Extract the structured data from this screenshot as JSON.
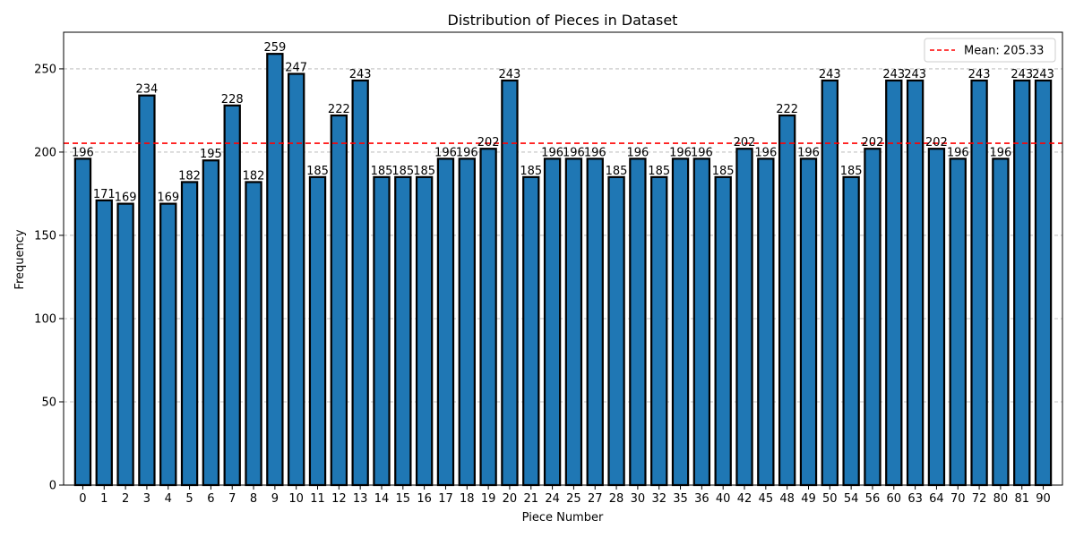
{
  "chart_data": {
    "type": "bar",
    "title": "Distribution of Pieces in Dataset",
    "xlabel": "Piece Number",
    "ylabel": "Frequency",
    "categories": [
      "0",
      "1",
      "2",
      "3",
      "4",
      "5",
      "6",
      "7",
      "8",
      "9",
      "10",
      "11",
      "12",
      "13",
      "14",
      "15",
      "16",
      "17",
      "18",
      "19",
      "20",
      "21",
      "24",
      "25",
      "27",
      "28",
      "30",
      "32",
      "35",
      "36",
      "40",
      "42",
      "45",
      "48",
      "49",
      "50",
      "54",
      "56",
      "60",
      "63",
      "64",
      "70",
      "72",
      "80",
      "81",
      "90"
    ],
    "values": [
      196,
      171,
      169,
      234,
      169,
      182,
      195,
      228,
      182,
      259,
      247,
      185,
      222,
      243,
      185,
      185,
      185,
      196,
      196,
      202,
      243,
      185,
      196,
      196,
      196,
      185,
      196,
      185,
      196,
      196,
      185,
      202,
      196,
      222,
      196,
      243,
      185,
      202,
      243,
      243,
      202,
      196,
      243,
      196,
      243,
      243
    ],
    "data_labels": [
      "196",
      "171",
      "169",
      "234",
      "169",
      "182",
      "195",
      "228",
      "182",
      "259",
      "247",
      "185",
      "222",
      "243",
      "185",
      "185",
      "185",
      "196",
      "196",
      "202",
      "243",
      "185",
      "196",
      "196",
      "196",
      "185",
      "196",
      "185",
      "196",
      "196",
      "185",
      "202",
      "196",
      "222",
      "196",
      "243",
      "185",
      "202",
      "243",
      "243",
      "202",
      "196",
      "243",
      "196",
      "243",
      "243"
    ],
    "ylim": [
      0,
      272
    ],
    "yticks": [
      0,
      50,
      100,
      150,
      200,
      250
    ],
    "ytick_labels": [
      "0",
      "50",
      "100",
      "150",
      "200",
      "250"
    ],
    "grid": "y-dashed",
    "bar_color": "#1f77b4",
    "bar_edge_color": "#000000",
    "reference_line": {
      "value": 205.33,
      "label": "Mean: 205.33",
      "color": "#ff0000",
      "style": "dashed"
    },
    "legend": {
      "placement": "top-right",
      "entries": [
        "Mean: 205.33"
      ]
    }
  }
}
